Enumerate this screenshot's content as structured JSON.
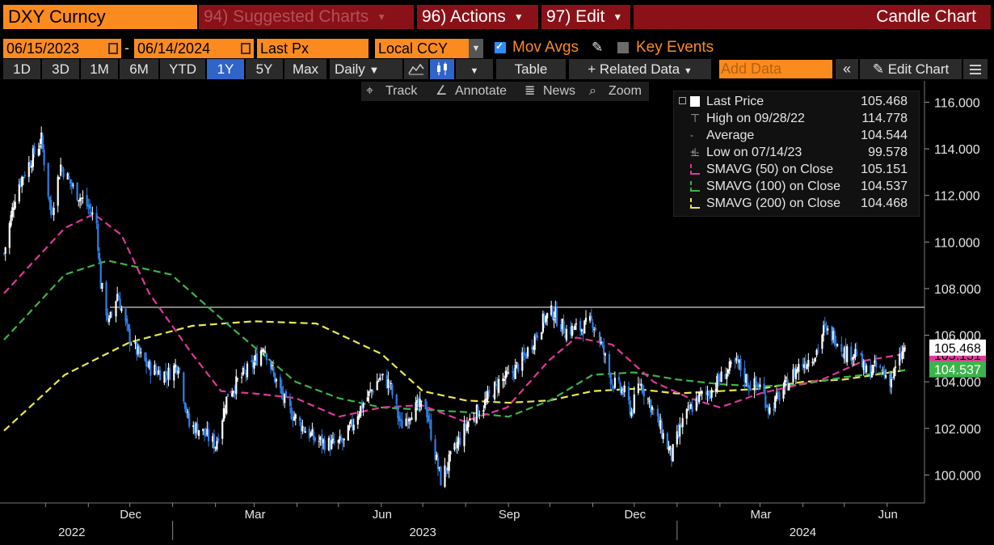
{
  "header": {
    "ticker": "DXY Curncy",
    "suggested": "94) Suggested Charts",
    "actions": "96) Actions",
    "edit": "97) Edit",
    "chart_type": "Candle Chart"
  },
  "controls": {
    "start_date": "06/15/2023",
    "date_sep": "-",
    "end_date": "06/14/2024",
    "field": "Last Px",
    "currency": "Local CCY",
    "mov_avgs": "Mov Avgs",
    "key_events": "Key Events"
  },
  "periods": [
    "1D",
    "3D",
    "1M",
    "6M",
    "YTD",
    "1Y",
    "5Y",
    "Max"
  ],
  "selected_period": "1Y",
  "frequency": "Daily",
  "buttons": {
    "table": "Table",
    "related": "+ Related Data",
    "add_data_placeholder": "Add Data",
    "edit_chart": "Edit Chart"
  },
  "tools": {
    "track": "Track",
    "annotate": "Annotate",
    "news": "News",
    "zoom": "Zoom"
  },
  "legend": [
    {
      "label": "Last Price",
      "value": "105.468",
      "color": "#ffffff"
    },
    {
      "label": "High on 09/28/22",
      "value": "114.778",
      "color": "#aaaaaa"
    },
    {
      "label": "Average",
      "value": "104.544",
      "color": "#aaaaaa"
    },
    {
      "label": "Low on 07/14/23",
      "value": "99.578",
      "color": "#aaaaaa"
    },
    {
      "label": "SMAVG (50)  on Close",
      "value": "105.151",
      "color": "#e0389a"
    },
    {
      "label": "SMAVG (100)  on Close",
      "value": "104.537",
      "color": "#3cb44a"
    },
    {
      "label": "SMAVG (200)  on Close",
      "value": "104.468",
      "color": "#e8e84a"
    }
  ],
  "colors": {
    "accent": "#fb8b1e",
    "tab_bg": "#8a1118",
    "up_candle": "#ffffff",
    "down_candle": "#2f7fe6",
    "sma50": "#e0389a",
    "sma100": "#3cb44a",
    "sma200": "#e8e84a"
  },
  "chart_data": {
    "type": "candlestick",
    "y_range": [
      98.8,
      116.5
    ],
    "y_ticks": [
      "116.000",
      "114.000",
      "112.000",
      "110.000",
      "108.000",
      "106.000",
      "104.000",
      "102.000",
      "100.000"
    ],
    "x_months": [
      "Dec",
      "Mar",
      "Jun",
      "Sep",
      "Dec",
      "Mar",
      "Jun"
    ],
    "x_years": [
      "2022",
      "2023",
      "2024"
    ],
    "x_range": [
      "2022-09-01",
      "2024-06-14"
    ],
    "reference_line": 107.2,
    "price_path": [
      [
        "2022-09-01",
        109.5
      ],
      [
        "2022-09-10",
        112.3
      ],
      [
        "2022-09-28",
        114.4
      ],
      [
        "2022-10-05",
        111.2
      ],
      [
        "2022-10-12",
        113.3
      ],
      [
        "2022-10-21",
        112.3
      ],
      [
        "2022-11-01",
        111.5
      ],
      [
        "2022-11-07",
        110.8
      ],
      [
        "2022-11-10",
        108.2
      ],
      [
        "2022-11-16",
        106.5
      ],
      [
        "2022-11-22",
        107.8
      ],
      [
        "2022-11-30",
        106.0
      ],
      [
        "2022-12-07",
        105.2
      ],
      [
        "2022-12-15",
        104.6
      ],
      [
        "2022-12-28",
        104.3
      ],
      [
        "2023-01-05",
        104.8
      ],
      [
        "2023-01-13",
        102.1
      ],
      [
        "2023-01-20",
        102.0
      ],
      [
        "2023-02-01",
        101.3
      ],
      [
        "2023-02-10",
        103.5
      ],
      [
        "2023-02-20",
        104.2
      ],
      [
        "2023-03-01",
        104.8
      ],
      [
        "2023-03-08",
        105.6
      ],
      [
        "2023-03-15",
        104.3
      ],
      [
        "2023-03-24",
        103.0
      ],
      [
        "2023-04-03",
        102.2
      ],
      [
        "2023-04-14",
        101.5
      ],
      [
        "2023-04-26",
        101.3
      ],
      [
        "2023-05-05",
        101.4
      ],
      [
        "2023-05-15",
        102.7
      ],
      [
        "2023-05-31",
        104.2
      ],
      [
        "2023-06-07",
        103.9
      ],
      [
        "2023-06-15",
        102.1
      ],
      [
        "2023-06-23",
        102.8
      ],
      [
        "2023-07-03",
        103.0
      ],
      [
        "2023-07-12",
        100.3
      ],
      [
        "2023-07-14",
        99.8
      ],
      [
        "2023-07-25",
        101.2
      ],
      [
        "2023-08-03",
        102.3
      ],
      [
        "2023-08-14",
        103.0
      ],
      [
        "2023-08-25",
        104.0
      ],
      [
        "2023-09-01",
        104.2
      ],
      [
        "2023-09-12",
        105.0
      ],
      [
        "2023-09-27",
        106.7
      ],
      [
        "2023-10-03",
        107.0
      ],
      [
        "2023-10-12",
        106.2
      ],
      [
        "2023-10-24",
        106.3
      ],
      [
        "2023-11-01",
        106.6
      ],
      [
        "2023-11-07",
        105.6
      ],
      [
        "2023-11-15",
        104.0
      ],
      [
        "2023-11-24",
        103.5
      ],
      [
        "2023-11-29",
        102.7
      ],
      [
        "2023-12-05",
        104.0
      ],
      [
        "2023-12-13",
        103.0
      ],
      [
        "2023-12-20",
        102.0
      ],
      [
        "2023-12-28",
        100.8
      ],
      [
        "2024-01-05",
        102.3
      ],
      [
        "2024-01-16",
        103.3
      ],
      [
        "2024-01-25",
        103.6
      ],
      [
        "2024-02-05",
        104.4
      ],
      [
        "2024-02-14",
        104.8
      ],
      [
        "2024-02-22",
        103.9
      ],
      [
        "2024-03-01",
        103.8
      ],
      [
        "2024-03-08",
        102.8
      ],
      [
        "2024-03-15",
        103.4
      ],
      [
        "2024-03-28",
        104.6
      ],
      [
        "2024-04-10",
        105.2
      ],
      [
        "2024-04-16",
        106.2
      ],
      [
        "2024-04-25",
        105.9
      ],
      [
        "2024-05-02",
        105.2
      ],
      [
        "2024-05-10",
        105.3
      ],
      [
        "2024-05-16",
        104.4
      ],
      [
        "2024-05-24",
        104.6
      ],
      [
        "2024-06-04",
        104.1
      ],
      [
        "2024-06-14",
        105.5
      ]
    ],
    "sma50": [
      [
        "2022-09-01",
        107.8
      ],
      [
        "2022-10-15",
        110.6
      ],
      [
        "2022-11-05",
        111.2
      ],
      [
        "2022-11-25",
        110.3
      ],
      [
        "2022-12-15",
        107.8
      ],
      [
        "2023-01-15",
        105.2
      ],
      [
        "2023-02-05",
        103.6
      ],
      [
        "2023-03-01",
        103.5
      ],
      [
        "2023-03-31",
        103.3
      ],
      [
        "2023-05-01",
        102.5
      ],
      [
        "2023-06-01",
        102.9
      ],
      [
        "2023-06-30",
        103.0
      ],
      [
        "2023-07-31",
        102.3
      ],
      [
        "2023-08-31",
        102.9
      ],
      [
        "2023-09-30",
        104.9
      ],
      [
        "2023-10-20",
        105.9
      ],
      [
        "2023-11-15",
        105.6
      ],
      [
        "2023-12-15",
        104.0
      ],
      [
        "2024-01-10",
        103.3
      ],
      [
        "2024-02-01",
        102.9
      ],
      [
        "2024-03-01",
        103.5
      ],
      [
        "2024-04-15",
        104.1
      ],
      [
        "2024-05-15",
        104.9
      ],
      [
        "2024-06-14",
        105.2
      ]
    ],
    "sma100": [
      [
        "2022-09-01",
        105.8
      ],
      [
        "2022-10-15",
        108.6
      ],
      [
        "2022-11-15",
        109.2
      ],
      [
        "2022-12-31",
        108.6
      ],
      [
        "2023-02-15",
        106.2
      ],
      [
        "2023-03-31",
        104.0
      ],
      [
        "2023-05-01",
        103.3
      ],
      [
        "2023-06-01",
        102.9
      ],
      [
        "2023-07-01",
        102.8
      ],
      [
        "2023-08-01",
        102.7
      ],
      [
        "2023-09-01",
        102.5
      ],
      [
        "2023-10-01",
        103.2
      ],
      [
        "2023-11-01",
        104.3
      ],
      [
        "2023-12-01",
        104.4
      ],
      [
        "2024-01-01",
        104.1
      ],
      [
        "2024-02-01",
        103.9
      ],
      [
        "2024-03-01",
        103.8
      ],
      [
        "2024-04-01",
        103.9
      ],
      [
        "2024-05-01",
        104.2
      ],
      [
        "2024-06-14",
        104.5
      ]
    ],
    "sma200": [
      [
        "2022-09-01",
        101.9
      ],
      [
        "2022-10-15",
        104.3
      ],
      [
        "2022-12-01",
        105.7
      ],
      [
        "2023-01-15",
        106.4
      ],
      [
        "2023-03-01",
        106.6
      ],
      [
        "2023-04-15",
        106.5
      ],
      [
        "2023-06-01",
        105.2
      ],
      [
        "2023-07-01",
        103.6
      ],
      [
        "2023-08-01",
        103.2
      ],
      [
        "2023-09-01",
        103.1
      ],
      [
        "2023-10-01",
        103.2
      ],
      [
        "2023-11-01",
        103.6
      ],
      [
        "2023-12-01",
        103.7
      ],
      [
        "2024-01-01",
        103.5
      ],
      [
        "2024-02-01",
        103.6
      ],
      [
        "2024-03-01",
        103.7
      ],
      [
        "2024-04-01",
        104.0
      ],
      [
        "2024-05-01",
        104.1
      ],
      [
        "2024-06-14",
        104.5
      ]
    ],
    "last_price_label": "105.468",
    "sma50_label": "105.151",
    "sma100_label": "104.537"
  }
}
